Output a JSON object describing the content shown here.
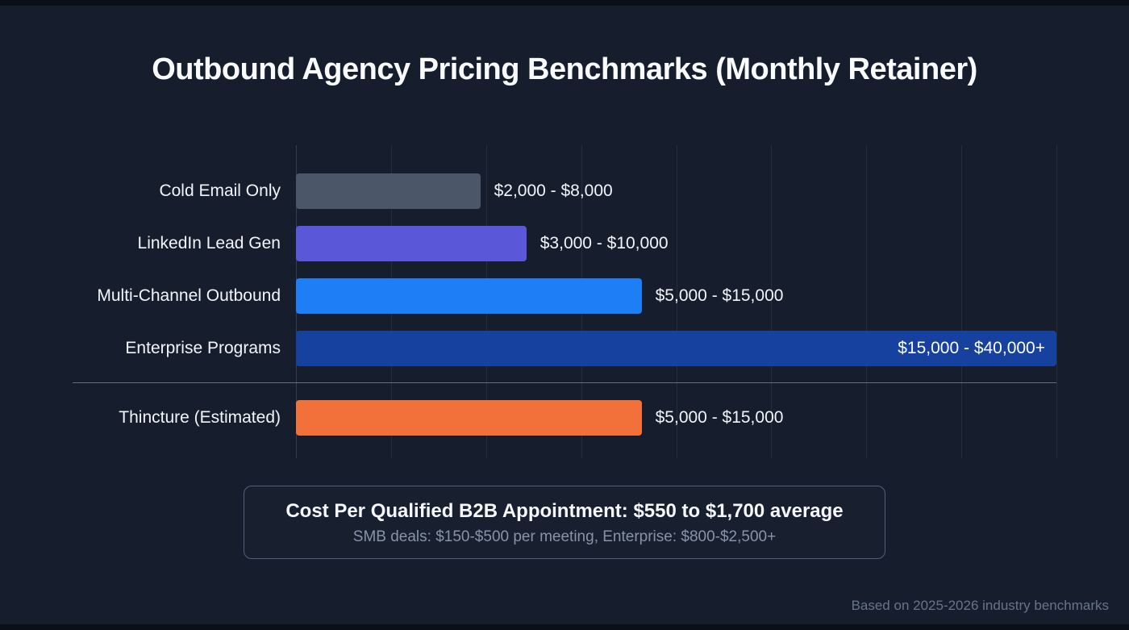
{
  "title": "Outbound Agency Pricing Benchmarks (Monthly Retainer)",
  "chart_data": {
    "type": "bar",
    "orientation": "horizontal",
    "title": "Outbound Agency Pricing Benchmarks (Monthly Retainer)",
    "xlabel": "",
    "ylabel": "",
    "xlim": [
      0,
      33000
    ],
    "grid": true,
    "grid_divisions": 8,
    "separator_after_index": 3,
    "categories": [
      "Cold Email Only",
      "LinkedIn Lead Gen",
      "Multi-Channel Outbound",
      "Enterprise Programs",
      "Thincture (Estimated)"
    ],
    "series": [
      {
        "name": "Cold Email Only",
        "low": 2000,
        "high": 8000,
        "label": "$2,000 - $8,000",
        "color": "#4b5769",
        "label_inside": false
      },
      {
        "name": "LinkedIn Lead Gen",
        "low": 3000,
        "high": 10000,
        "label": "$3,000 - $10,000",
        "color": "#5a57d8",
        "label_inside": false
      },
      {
        "name": "Multi-Channel Outbound",
        "low": 5000,
        "high": 15000,
        "label": "$5,000 - $15,000",
        "color": "#1e7ef5",
        "label_inside": false
      },
      {
        "name": "Enterprise Programs",
        "low": 15000,
        "high": 40000,
        "label": "$15,000 - $40,000+",
        "color": "#16419f",
        "label_inside": true
      },
      {
        "name": "Thincture (Estimated)",
        "low": 5000,
        "high": 15000,
        "label": "$5,000 - $15,000",
        "color": "#f2703a",
        "label_inside": false
      }
    ]
  },
  "callout": {
    "title": "Cost Per Qualified B2B Appointment: $550 to $1,700 average",
    "subtitle": "SMB deals: $150-$500 per meeting, Enterprise: $800-$2,500+"
  },
  "footer": {
    "note": "Based on 2025-2026 industry benchmarks"
  }
}
